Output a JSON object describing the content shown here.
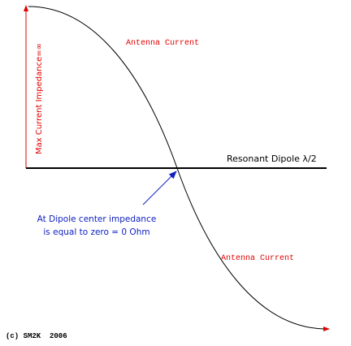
{
  "labels": {
    "current_top": "Antenna Current",
    "current_bottom": "Antenna Current",
    "y_axis": "Max Current Impedance=∞",
    "x_axis": "Resonant Dipole λ/2",
    "note_line1": "At Dipole center impedance",
    "note_line2": "is equal to zero = 0 Ohm",
    "copyright": "(c) SM2K  2006"
  }
}
